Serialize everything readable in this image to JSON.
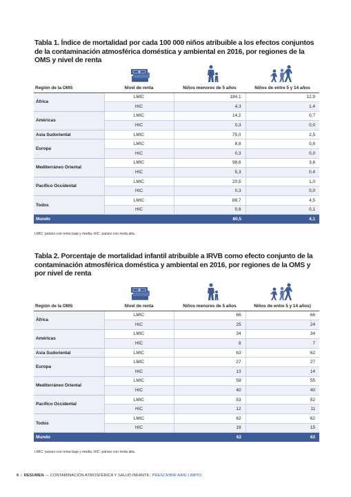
{
  "table1": {
    "title": "Tabla 1. Índice de mortalidad por cada 100 000 niños atribuible a los efectos conjuntos de la contaminación atmosférica doméstica y ambiental en 2016, por regiones de la OMS y nivel de renta",
    "headers": [
      "Región de la OMS",
      "Nivel de renta",
      "Niños menores de 5 años",
      "Niños de entre 5 y 14 años"
    ],
    "regions": [
      {
        "name": "África",
        "rows": [
          {
            "level": "LMIC",
            "under5": "184,1",
            "age5_14": "12,9"
          },
          {
            "level": "HIC",
            "under5": "4,3",
            "age5_14": "1,4"
          }
        ]
      },
      {
        "name": "Américas",
        "rows": [
          {
            "level": "LMIC",
            "under5": "14,2",
            "age5_14": "0,7"
          },
          {
            "level": "HIC",
            "under5": "0,3",
            "age5_14": "0,0"
          }
        ]
      },
      {
        "name": "Asia Sudoriental",
        "rows": [
          {
            "level": "LMIC",
            "under5": "75,0",
            "age5_14": "2,5"
          }
        ]
      },
      {
        "name": "Europa",
        "rows": [
          {
            "level": "LMIC",
            "under5": "8,8",
            "age5_14": "0,6"
          },
          {
            "level": "HIC",
            "under5": "0,3",
            "age5_14": "0,0"
          }
        ]
      },
      {
        "name": "Mediterráneo Oriental",
        "rows": [
          {
            "level": "LMIC",
            "under5": "98,6",
            "age5_14": "3,6"
          },
          {
            "level": "HIC",
            "under5": "5,3",
            "age5_14": "0,4"
          }
        ]
      },
      {
        "name": "Pacífico Occidental",
        "rows": [
          {
            "level": "LMIC",
            "under5": "20,5",
            "age5_14": "1,0"
          },
          {
            "level": "HIC",
            "under5": "0,3",
            "age5_14": "0,0"
          }
        ]
      },
      {
        "name": "Todos",
        "rows": [
          {
            "level": "LMIC",
            "under5": "88,7",
            "age5_14": "4,5"
          },
          {
            "level": "HIC",
            "under5": "0,6",
            "age5_14": "0,1"
          }
        ]
      }
    ],
    "total": {
      "label": "Mundo",
      "under5": "80,5",
      "age5_14": "4,1"
    },
    "note": "LMIC: países con renta baja y media; HIC: países con renta alta."
  },
  "table2": {
    "title": "Tabla 2. Porcentaje de mortalidad infantil atribuible a IRVB como efecto conjunto de la contaminación atmosférica doméstica y ambiental en 2016, por regiones de la OMS y por nivel de renta",
    "headers": [
      "Región de la OMS",
      "Nivel de renta",
      "Niños menores de 5 años",
      "Niños de entre 5 y 14 años)"
    ],
    "regions": [
      {
        "name": "África",
        "rows": [
          {
            "level": "LMIC",
            "under5": "66",
            "age5_14": "66"
          },
          {
            "level": "HIC",
            "under5": "25",
            "age5_14": "24"
          }
        ]
      },
      {
        "name": "Américas",
        "rows": [
          {
            "level": "LMIC",
            "under5": "34",
            "age5_14": "34"
          },
          {
            "level": "HIC",
            "under5": "8",
            "age5_14": "7"
          }
        ]
      },
      {
        "name": "Asia Sudoriental",
        "rows": [
          {
            "level": "LMIC",
            "under5": "63",
            "age5_14": "62"
          }
        ]
      },
      {
        "name": "Europa",
        "rows": [
          {
            "level": "LMIC",
            "under5": "27",
            "age5_14": "27"
          },
          {
            "level": "HIC",
            "under5": "13",
            "age5_14": "14"
          }
        ]
      },
      {
        "name": "Mediterráneo Oriental",
        "rows": [
          {
            "level": "LMIC",
            "under5": "58",
            "age5_14": "55"
          },
          {
            "level": "HIC",
            "under5": "40",
            "age5_14": "40"
          }
        ]
      },
      {
        "name": "Pacífico Occidental",
        "rows": [
          {
            "level": "LMIC",
            "under5": "53",
            "age5_14": "52"
          },
          {
            "level": "HIC",
            "under5": "12",
            "age5_14": "11"
          }
        ]
      },
      {
        "name": "Todos",
        "rows": [
          {
            "level": "LMIC",
            "under5": "62",
            "age5_14": "62"
          },
          {
            "level": "HIC",
            "under5": "18",
            "age5_14": "15"
          }
        ]
      }
    ],
    "total": {
      "label": "Mundo",
      "under5": "62",
      "age5_14": "62"
    },
    "note": "LMIC: países con renta baja y media; HIC: países con renta alta."
  },
  "icons": [
    "money-stack-icon",
    "mother-child-icon",
    "running-children-icon"
  ],
  "colors": {
    "total_row": "#3e5c98",
    "alt_row": "#edf0f7",
    "accent": "#2f5aa8"
  },
  "footer": {
    "page_number": "6",
    "section": "RESUMEN",
    "dash": "—",
    "title": "CONTAMINACIÓN ATMOSFÉRICA Y SALUD INFANTIL:",
    "subtitle": "PRESCRIBIR AIRE LIMPIO"
  }
}
